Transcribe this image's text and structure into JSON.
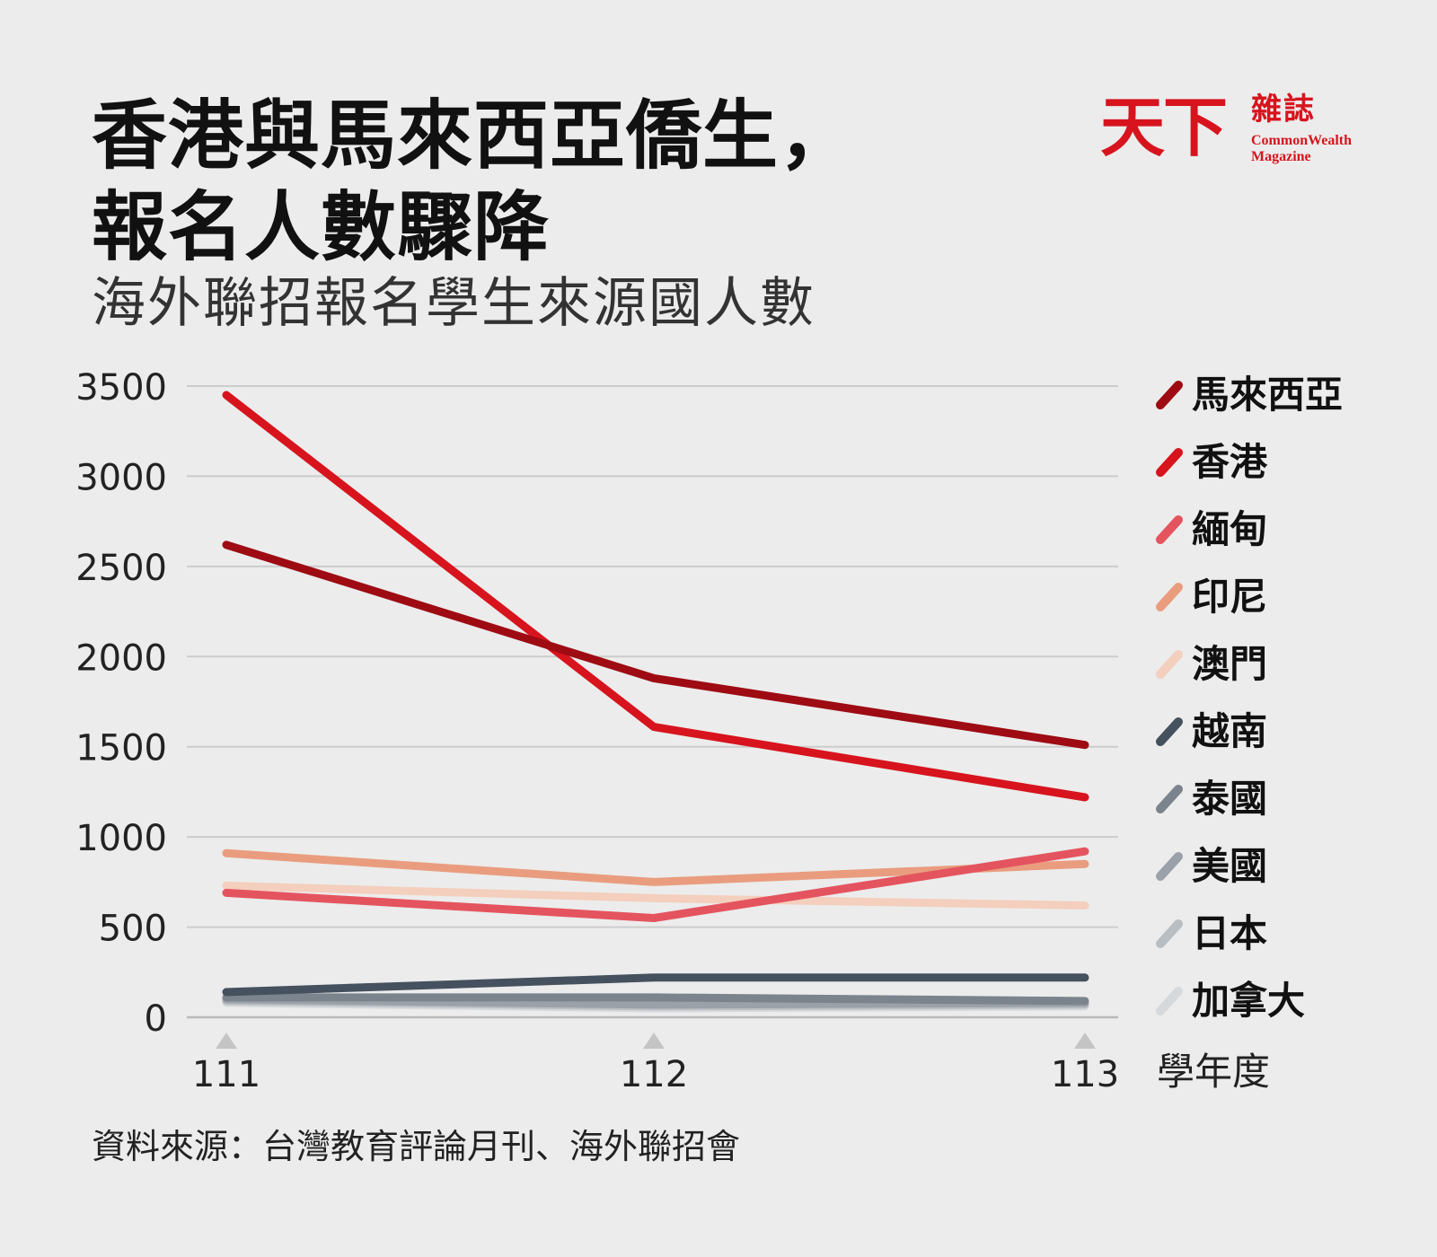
{
  "title_lines": [
    "香港與馬來西亞僑生，",
    "報名人數驟降"
  ],
  "subtitle": "海外聯招報名學生來源國人數",
  "source": "資料來源：台灣教育評論月刊、海外聯招會",
  "brand": {
    "name_cn": "天下",
    "name_small": "雜誌",
    "name_en_line1": "CommonWealth",
    "name_en_line2": "Magazine",
    "color": "#d7141d"
  },
  "chart_data": {
    "type": "line",
    "title": "海外聯招報名學生來源國人數",
    "x": [
      "111",
      "112",
      "113"
    ],
    "xlabel": "學年度",
    "ylabel": "",
    "ylim": [
      0,
      3500
    ],
    "yticks": [
      0,
      500,
      1000,
      1500,
      2000,
      2500,
      3000,
      3500
    ],
    "grid": true,
    "legend_position": "right",
    "series": [
      {
        "name": "馬來西亞",
        "values": [
          2620,
          1880,
          1510
        ],
        "color": "#9e0b13"
      },
      {
        "name": "香港",
        "values": [
          3450,
          1610,
          1220
        ],
        "color": "#d7141d"
      },
      {
        "name": "緬甸",
        "values": [
          690,
          550,
          920
        ],
        "color": "#e4545f"
      },
      {
        "name": "印尼",
        "values": [
          910,
          750,
          850
        ],
        "color": "#e99d7e"
      },
      {
        "name": "澳門",
        "values": [
          730,
          660,
          620
        ],
        "color": "#f4cfbd"
      },
      {
        "name": "越南",
        "values": [
          140,
          220,
          220
        ],
        "color": "#45515e"
      },
      {
        "name": "泰國",
        "values": [
          110,
          110,
          90
        ],
        "color": "#7b848d"
      },
      {
        "name": "美國",
        "values": [
          100,
          70,
          80
        ],
        "color": "#9aa1a8"
      },
      {
        "name": "日本",
        "values": [
          90,
          60,
          70
        ],
        "color": "#b9bec3"
      },
      {
        "name": "加拿大",
        "values": [
          80,
          50,
          60
        ],
        "color": "#d6d9dc"
      }
    ]
  }
}
